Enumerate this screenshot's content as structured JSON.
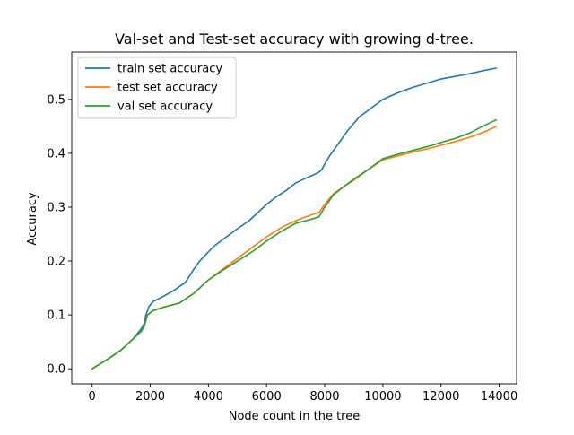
{
  "chart_data": {
    "type": "line",
    "title": "Val-set and Test-set accuracy with growing d-tree.",
    "xlabel": "Node count in the tree",
    "ylabel": "Accuracy",
    "xlim": [
      -700,
      14600
    ],
    "ylim": [
      -0.028,
      0.588
    ],
    "x_ticks": [
      0,
      2000,
      4000,
      6000,
      8000,
      10000,
      12000,
      14000
    ],
    "x_tick_labels": [
      "0",
      "2000",
      "4000",
      "6000",
      "8000",
      "10000",
      "12000",
      "14000"
    ],
    "y_ticks": [
      0.0,
      0.1,
      0.2,
      0.3,
      0.4,
      0.5
    ],
    "y_tick_labels": [
      "0.0",
      "0.1",
      "0.2",
      "0.3",
      "0.4",
      "0.5"
    ],
    "grid": false,
    "legend_position": "upper-left",
    "series": [
      {
        "name": "train set accuracy",
        "color": "#1f77b4",
        "x": [
          0,
          300,
          600,
          1000,
          1400,
          1700,
          1800,
          1850,
          1950,
          2100,
          2400,
          2800,
          3200,
          3500,
          3700,
          4000,
          4200,
          4500,
          5000,
          5400,
          5700,
          6000,
          6300,
          6700,
          7000,
          7400,
          7700,
          7800,
          7900,
          8000,
          8200,
          8500,
          8800,
          9200,
          9500,
          9800,
          10000,
          10500,
          11000,
          11500,
          12000,
          12500,
          13000,
          13500,
          13900
        ],
        "y": [
          0.0,
          0.01,
          0.02,
          0.035,
          0.055,
          0.075,
          0.085,
          0.1,
          0.115,
          0.125,
          0.133,
          0.145,
          0.16,
          0.185,
          0.2,
          0.217,
          0.228,
          0.24,
          0.26,
          0.275,
          0.29,
          0.305,
          0.318,
          0.332,
          0.345,
          0.355,
          0.362,
          0.365,
          0.37,
          0.38,
          0.398,
          0.42,
          0.443,
          0.468,
          0.48,
          0.492,
          0.5,
          0.512,
          0.522,
          0.53,
          0.538,
          0.543,
          0.548,
          0.554,
          0.558
        ]
      },
      {
        "name": "test set accuracy",
        "color": "#ff7f0e",
        "x": [
          0,
          300,
          600,
          1000,
          1400,
          1700,
          1800,
          1900,
          2100,
          2500,
          3000,
          3500,
          4000,
          4500,
          5000,
          5500,
          6000,
          6500,
          7000,
          7500,
          7800,
          8000,
          8300,
          8700,
          9000,
          9500,
          10000,
          10500,
          11000,
          11500,
          12000,
          12500,
          13000,
          13500,
          13900
        ],
        "y": [
          0.0,
          0.01,
          0.02,
          0.035,
          0.055,
          0.07,
          0.08,
          0.1,
          0.108,
          0.115,
          0.122,
          0.14,
          0.165,
          0.185,
          0.205,
          0.225,
          0.245,
          0.262,
          0.275,
          0.285,
          0.29,
          0.305,
          0.325,
          0.34,
          0.35,
          0.37,
          0.388,
          0.395,
          0.402,
          0.408,
          0.415,
          0.422,
          0.43,
          0.44,
          0.45
        ]
      },
      {
        "name": "val set accuracy",
        "color": "#2ca02c",
        "x": [
          0,
          300,
          600,
          1000,
          1400,
          1700,
          1800,
          1900,
          2100,
          2500,
          3000,
          3500,
          4000,
          4500,
          5000,
          5500,
          6000,
          6500,
          7000,
          7500,
          7800,
          8000,
          8300,
          8700,
          9000,
          9500,
          10000,
          10500,
          11000,
          11500,
          12000,
          12500,
          13000,
          13500,
          13900
        ],
        "y": [
          0.0,
          0.01,
          0.02,
          0.035,
          0.055,
          0.07,
          0.08,
          0.1,
          0.108,
          0.115,
          0.122,
          0.14,
          0.165,
          0.183,
          0.2,
          0.217,
          0.237,
          0.255,
          0.27,
          0.277,
          0.282,
          0.3,
          0.323,
          0.34,
          0.352,
          0.37,
          0.39,
          0.398,
          0.405,
          0.412,
          0.42,
          0.428,
          0.438,
          0.452,
          0.462
        ]
      }
    ]
  }
}
